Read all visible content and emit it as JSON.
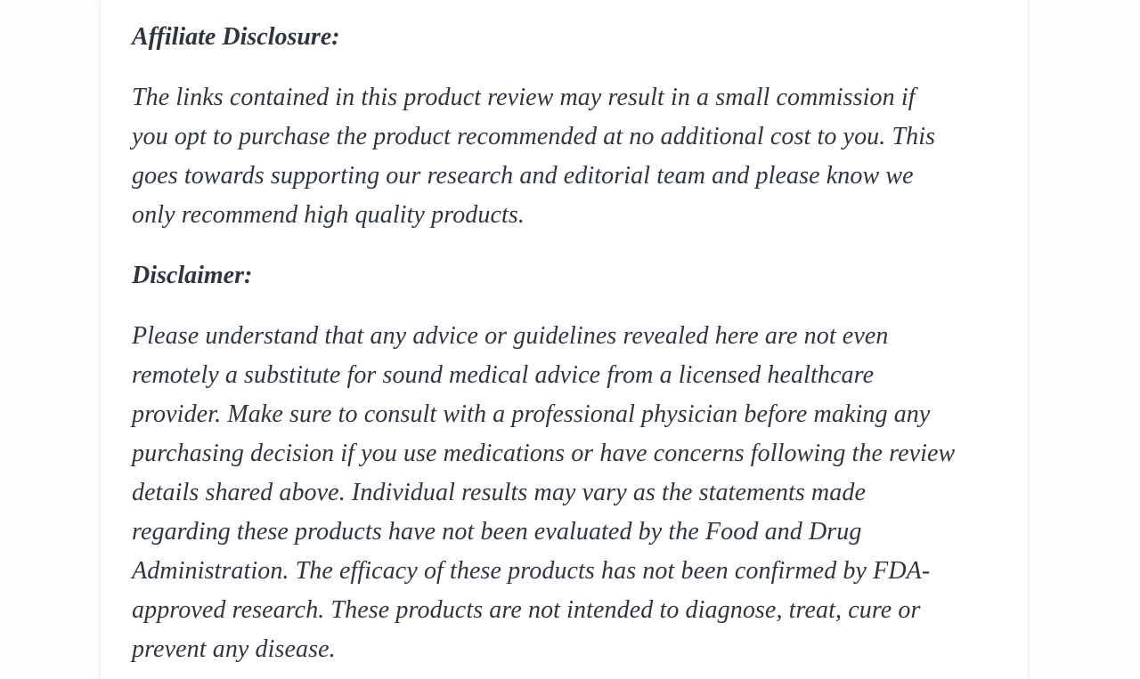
{
  "colors": {
    "page_background": "#fdfdfd",
    "card_background": "#ffffff",
    "card_edge": "#ececec",
    "text": "#2d3540"
  },
  "article": {
    "sections": [
      {
        "heading": "Affiliate Disclosure:",
        "lines": [
          "The links contained in this product review may result in a small commission if",
          "you opt to purchase the product recommended at no additional cost to you. This",
          "goes towards supporting our research and editorial team and please know we",
          "only recommend high quality products."
        ]
      },
      {
        "heading": "Disclaimer:",
        "lines": [
          "Please understand that any advice or guidelines revealed here are not even",
          "remotely a substitute for sound medical advice from a licensed healthcare",
          "provider. Make sure to consult with a professional physician before making any",
          "purchasing decision if you use medications or have concerns following the review",
          "details shared above. Individual results may vary as the statements made",
          "regarding these products have not been evaluated by the Food and Drug",
          "Administration. The efficacy of these products has not been confirmed by FDA-",
          "approved research. These products are not intended to diagnose, treat, cure or",
          "prevent any disease."
        ]
      }
    ]
  }
}
